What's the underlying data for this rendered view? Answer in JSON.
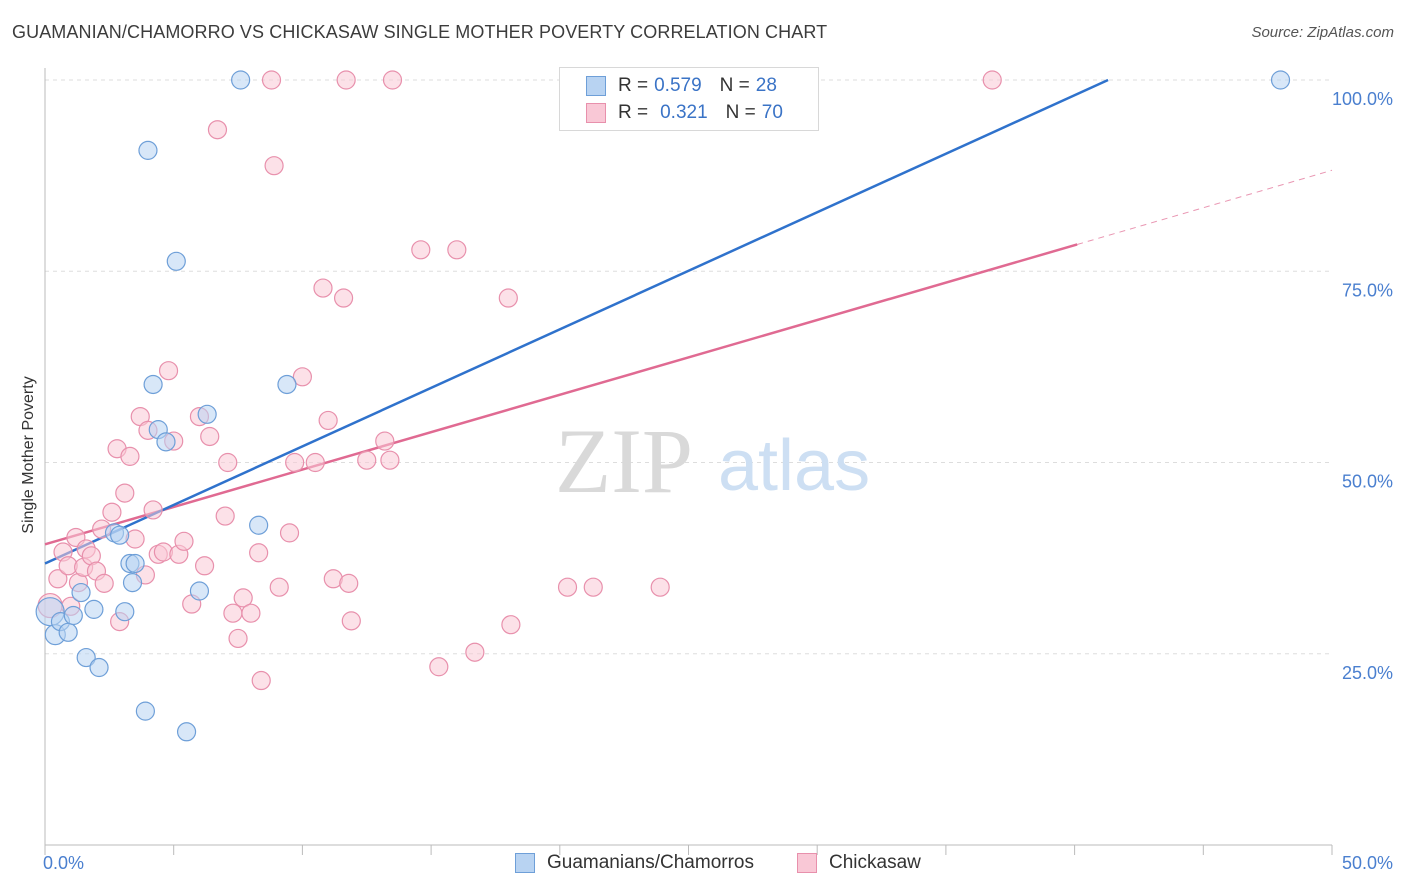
{
  "header": {
    "title": "GUAMANIAN/CHAMORRO VS CHICKASAW SINGLE MOTHER POVERTY CORRELATION CHART",
    "source": "Source: ZipAtlas.com"
  },
  "watermark": {
    "zip": "ZIP",
    "atlas": "atlas"
  },
  "legend": {
    "rows": [
      {
        "r_label": "R =",
        "r_value": "0.579",
        "n_label": "N =",
        "n_value": "28"
      },
      {
        "r_label": "R =",
        "r_value": "0.321",
        "n_label": "N =",
        "n_value": "70"
      }
    ]
  },
  "bottom_legend": [
    "Guamanians/Chamorros",
    "Chickasaw"
  ],
  "colors": {
    "series1_fill": "#b8d3f2",
    "series1_stroke": "#6e9fd8",
    "series1_line": "#2f72cc",
    "series2_fill": "#f9c8d6",
    "series2_stroke": "#e890ac",
    "series2_line": "#e06a92",
    "tick_label": "#4a7fcf",
    "grid": "#dddddd"
  },
  "chart_data": {
    "type": "scatter",
    "title": "GUAMANIAN/CHAMORRO VS CHICKASAW SINGLE MOTHER POVERTY CORRELATION CHART",
    "xlabel": "",
    "ylabel": "Single Mother Poverty",
    "xlim": [
      0,
      50
    ],
    "ylim": [
      0,
      100
    ],
    "x_tick_labels": [
      "0.0%",
      "50.0%"
    ],
    "y_ticks": [
      25,
      50,
      75,
      100
    ],
    "y_tick_labels": [
      "25.0%",
      "50.0%",
      "75.0%",
      "100.0%"
    ],
    "grid": "horizontal dashed",
    "legend_placement": "top-center",
    "series": [
      {
        "name": "Guamanians/Chamorros",
        "r": 0.579,
        "n": 28,
        "trend": {
          "x": [
            0,
            41.3
          ],
          "y": [
            36.8,
            100
          ]
        },
        "points": [
          [
            0.2,
            30.5,
            14
          ],
          [
            0.4,
            27.5,
            10
          ],
          [
            0.6,
            29.2,
            9
          ],
          [
            0.9,
            27.8,
            9
          ],
          [
            1.1,
            30.0,
            9
          ],
          [
            1.4,
            33.0,
            9
          ],
          [
            1.9,
            30.8,
            9
          ],
          [
            1.6,
            24.5,
            9
          ],
          [
            2.1,
            23.2,
            9
          ],
          [
            2.7,
            40.8,
            9
          ],
          [
            2.9,
            40.5,
            9
          ],
          [
            3.3,
            36.8,
            9
          ],
          [
            3.4,
            34.3,
            9
          ],
          [
            3.5,
            36.8,
            9
          ],
          [
            3.1,
            30.5,
            9
          ],
          [
            3.9,
            17.5,
            9
          ],
          [
            4.0,
            90.8,
            9
          ],
          [
            4.2,
            60.2,
            9
          ],
          [
            4.4,
            54.3,
            9
          ],
          [
            4.7,
            52.7,
            9
          ],
          [
            5.1,
            76.3,
            9
          ],
          [
            5.5,
            14.8,
            9
          ],
          [
            6.0,
            33.2,
            9
          ],
          [
            6.3,
            56.3,
            9
          ],
          [
            7.6,
            100,
            9
          ],
          [
            8.3,
            41.8,
            9
          ],
          [
            9.4,
            60.2,
            9
          ],
          [
            48.0,
            100,
            9
          ]
        ]
      },
      {
        "name": "Chickasaw",
        "r": 0.321,
        "n": 70,
        "trend": {
          "x": [
            0,
            40.1
          ],
          "y": [
            39.3,
            78.5
          ]
        },
        "trend_dashed": {
          "x": [
            40.1,
            50
          ],
          "y": [
            78.5,
            88.2
          ]
        },
        "points": [
          [
            0.2,
            31.3,
            12
          ],
          [
            0.5,
            34.8,
            9
          ],
          [
            0.7,
            38.3,
            9
          ],
          [
            0.9,
            36.5,
            9
          ],
          [
            1.0,
            31.2,
            9
          ],
          [
            1.2,
            40.2,
            9
          ],
          [
            1.3,
            34.3,
            9
          ],
          [
            1.5,
            36.3,
            9
          ],
          [
            1.6,
            38.7,
            9
          ],
          [
            1.8,
            37.8,
            9
          ],
          [
            2.0,
            35.8,
            9
          ],
          [
            2.2,
            41.3,
            9
          ],
          [
            2.3,
            34.2,
            9
          ],
          [
            2.6,
            43.5,
            9
          ],
          [
            2.8,
            51.8,
            9
          ],
          [
            2.9,
            29.2,
            9
          ],
          [
            3.1,
            46.0,
            9
          ],
          [
            3.3,
            50.8,
            9
          ],
          [
            3.5,
            40.0,
            9
          ],
          [
            3.7,
            56.0,
            9
          ],
          [
            3.9,
            35.3,
            9
          ],
          [
            4.0,
            54.2,
            9
          ],
          [
            4.2,
            43.8,
            9
          ],
          [
            4.4,
            38.0,
            9
          ],
          [
            4.6,
            38.3,
            9
          ],
          [
            4.8,
            62.0,
            9
          ],
          [
            5.0,
            52.8,
            9
          ],
          [
            5.2,
            38.0,
            9
          ],
          [
            5.4,
            39.7,
            9
          ],
          [
            5.7,
            31.5,
            9
          ],
          [
            6.0,
            56.0,
            9
          ],
          [
            6.2,
            36.5,
            9
          ],
          [
            6.4,
            53.4,
            9
          ],
          [
            6.7,
            93.5,
            9
          ],
          [
            7.0,
            43.0,
            9
          ],
          [
            7.1,
            50.0,
            9
          ],
          [
            7.3,
            30.3,
            9
          ],
          [
            7.5,
            27.0,
            9
          ],
          [
            7.7,
            32.3,
            9
          ],
          [
            8.0,
            30.3,
            9
          ],
          [
            8.3,
            38.2,
            9
          ],
          [
            8.4,
            21.5,
            9
          ],
          [
            8.8,
            100,
            9
          ],
          [
            8.9,
            88.8,
            9
          ],
          [
            9.1,
            33.7,
            9
          ],
          [
            9.5,
            40.8,
            9
          ],
          [
            9.7,
            50.0,
            9
          ],
          [
            10.0,
            61.2,
            9
          ],
          [
            10.5,
            50.0,
            9
          ],
          [
            10.8,
            72.8,
            9
          ],
          [
            11.0,
            55.5,
            9
          ],
          [
            11.2,
            34.8,
            9
          ],
          [
            11.6,
            71.5,
            9
          ],
          [
            11.7,
            100,
            9
          ],
          [
            11.8,
            34.2,
            9
          ],
          [
            11.9,
            29.3,
            9
          ],
          [
            12.5,
            50.3,
            9
          ],
          [
            13.2,
            52.8,
            9
          ],
          [
            13.4,
            50.3,
            9
          ],
          [
            13.5,
            100,
            9
          ],
          [
            14.6,
            77.8,
            9
          ],
          [
            15.3,
            23.3,
            9
          ],
          [
            16.0,
            77.8,
            9
          ],
          [
            16.7,
            25.2,
            9
          ],
          [
            18.0,
            71.5,
            9
          ],
          [
            18.1,
            28.8,
            9
          ],
          [
            20.3,
            33.7,
            9
          ],
          [
            21.3,
            33.7,
            9
          ],
          [
            23.9,
            33.7,
            9
          ],
          [
            36.8,
            100,
            9
          ]
        ]
      }
    ]
  }
}
